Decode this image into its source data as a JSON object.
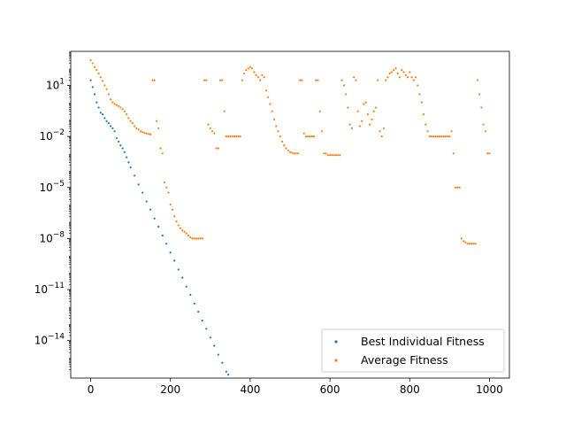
{
  "chart_data": {
    "type": "scatter",
    "xlim": [
      -50,
      1050
    ],
    "ylim_log10": [
      -16.2,
      3.0
    ],
    "y_scale": "log",
    "grid": false,
    "legend_position": "bottom-right",
    "x_ticks": [
      {
        "value": 0,
        "label": "0"
      },
      {
        "value": 200,
        "label": "200"
      },
      {
        "value": 400,
        "label": "400"
      },
      {
        "value": 600,
        "label": "600"
      },
      {
        "value": 800,
        "label": "800"
      },
      {
        "value": 1000,
        "label": "1000"
      }
    ],
    "y_ticks": [
      {
        "log10": 1,
        "base": "10",
        "exp": "1"
      },
      {
        "log10": -2,
        "base": "10",
        "exp": "−2"
      },
      {
        "log10": -5,
        "base": "10",
        "exp": "−5"
      },
      {
        "log10": -8,
        "base": "10",
        "exp": "−8"
      },
      {
        "log10": -11,
        "base": "10",
        "exp": "−11"
      },
      {
        "log10": -14,
        "base": "10",
        "exp": "−14"
      }
    ],
    "series": [
      {
        "name": "Best Individual Fitness",
        "color": "#1f77b4",
        "marker": "point",
        "points": [
          [
            0,
            20
          ],
          [
            5,
            8
          ],
          [
            10,
            3
          ],
          [
            15,
            1
          ],
          [
            20,
            0.5
          ],
          [
            25,
            0.25
          ],
          [
            30,
            0.2
          ],
          [
            35,
            0.12
          ],
          [
            40,
            0.08
          ],
          [
            45,
            0.06
          ],
          [
            50,
            0.04
          ],
          [
            55,
            0.03
          ],
          [
            60,
            0.02
          ],
          [
            65,
            0.008
          ],
          [
            70,
            0.005
          ],
          [
            75,
            0.003
          ],
          [
            80,
            0.002
          ],
          [
            85,
            0.0012
          ],
          [
            90,
            0.0006
          ],
          [
            95,
            0.0003
          ],
          [
            100,
            0.00015
          ],
          [
            110,
            5e-05
          ],
          [
            120,
            1.5e-05
          ],
          [
            130,
            5e-06
          ],
          [
            140,
            1.5e-06
          ],
          [
            150,
            5e-07
          ],
          [
            160,
            1.5e-07
          ],
          [
            170,
            5e-08
          ],
          [
            180,
            1.5e-08
          ],
          [
            190,
            5e-09
          ],
          [
            200,
            1.5e-09
          ],
          [
            210,
            5e-10
          ],
          [
            220,
            1.5e-10
          ],
          [
            230,
            5e-11
          ],
          [
            240,
            1.5e-11
          ],
          [
            250,
            5e-12
          ],
          [
            260,
            1.5e-12
          ],
          [
            270,
            5e-13
          ],
          [
            280,
            1.5e-13
          ],
          [
            290,
            5e-14
          ],
          [
            300,
            1.5e-14
          ],
          [
            310,
            5e-15
          ],
          [
            320,
            1.5e-15
          ],
          [
            330,
            5e-16
          ],
          [
            340,
            1.5e-16
          ],
          [
            345,
            1e-16
          ]
        ]
      },
      {
        "name": "Average Fitness",
        "color": "#ff7f0e",
        "marker": "point",
        "points": [
          [
            0,
            300
          ],
          [
            5,
            200
          ],
          [
            10,
            120
          ],
          [
            15,
            80
          ],
          [
            20,
            50
          ],
          [
            25,
            30
          ],
          [
            30,
            18
          ],
          [
            35,
            10
          ],
          [
            40,
            6
          ],
          [
            45,
            3
          ],
          [
            50,
            1.5
          ],
          [
            55,
            1.0
          ],
          [
            60,
            0.8
          ],
          [
            65,
            0.7
          ],
          [
            70,
            0.6
          ],
          [
            75,
            0.5
          ],
          [
            80,
            0.4
          ],
          [
            85,
            0.3
          ],
          [
            90,
            0.2
          ],
          [
            95,
            0.12
          ],
          [
            100,
            0.08
          ],
          [
            105,
            0.06
          ],
          [
            110,
            0.04
          ],
          [
            115,
            0.03
          ],
          [
            120,
            0.025
          ],
          [
            125,
            0.02
          ],
          [
            130,
            0.018
          ],
          [
            135,
            0.016
          ],
          [
            140,
            0.015
          ],
          [
            145,
            0.014
          ],
          [
            150,
            0.013
          ],
          [
            155,
            20
          ],
          [
            160,
            20
          ],
          [
            165,
            0.08
          ],
          [
            170,
            0.03
          ],
          [
            175,
            0.002
          ],
          [
            180,
            0.001
          ],
          [
            185,
            2e-05
          ],
          [
            190,
            1e-05
          ],
          [
            195,
            5e-06
          ],
          [
            200,
            1e-06
          ],
          [
            205,
            5e-07
          ],
          [
            210,
            2e-07
          ],
          [
            215,
            1e-07
          ],
          [
            220,
            6e-08
          ],
          [
            225,
            4e-08
          ],
          [
            230,
            3e-08
          ],
          [
            235,
            2.5e-08
          ],
          [
            240,
            2e-08
          ],
          [
            245,
            1.5e-08
          ],
          [
            250,
            1.2e-08
          ],
          [
            255,
            1e-08
          ],
          [
            260,
            1e-08
          ],
          [
            265,
            1e-08
          ],
          [
            270,
            1e-08
          ],
          [
            275,
            1e-08
          ],
          [
            280,
            1e-08
          ],
          [
            285,
            20
          ],
          [
            290,
            20
          ],
          [
            295,
            0.05
          ],
          [
            300,
            0.03
          ],
          [
            305,
            0.02
          ],
          [
            310,
            0.015
          ],
          [
            315,
            0.002
          ],
          [
            320,
            0.002
          ],
          [
            325,
            20
          ],
          [
            330,
            20
          ],
          [
            335,
            0.3
          ],
          [
            340,
            0.01
          ],
          [
            345,
            0.01
          ],
          [
            350,
            0.01
          ],
          [
            355,
            0.01
          ],
          [
            360,
            0.01
          ],
          [
            365,
            0.01
          ],
          [
            370,
            0.01
          ],
          [
            375,
            0.01
          ],
          [
            380,
            20
          ],
          [
            385,
            50
          ],
          [
            390,
            80
          ],
          [
            395,
            100
          ],
          [
            400,
            120
          ],
          [
            405,
            100
          ],
          [
            410,
            60
          ],
          [
            415,
            40
          ],
          [
            420,
            30
          ],
          [
            425,
            20
          ],
          [
            430,
            40
          ],
          [
            435,
            30
          ],
          [
            440,
            5
          ],
          [
            445,
            2
          ],
          [
            450,
            0.8
          ],
          [
            455,
            0.3
          ],
          [
            460,
            0.1
          ],
          [
            465,
            0.04
          ],
          [
            470,
            0.02
          ],
          [
            475,
            0.01
          ],
          [
            480,
            0.005
          ],
          [
            485,
            0.003
          ],
          [
            490,
            0.002
          ],
          [
            495,
            0.0015
          ],
          [
            500,
            0.0012
          ],
          [
            505,
            0.0011
          ],
          [
            510,
            0.001
          ],
          [
            515,
            0.001
          ],
          [
            520,
            0.001
          ],
          [
            525,
            20
          ],
          [
            530,
            20
          ],
          [
            535,
            0.015
          ],
          [
            540,
            0.01
          ],
          [
            545,
            0.01
          ],
          [
            550,
            0.01
          ],
          [
            555,
            0.01
          ],
          [
            560,
            0.01
          ],
          [
            565,
            20
          ],
          [
            570,
            20
          ],
          [
            575,
            0.3
          ],
          [
            580,
            0.02
          ],
          [
            585,
            0.001
          ],
          [
            590,
            0.001
          ],
          [
            595,
            0.0008
          ],
          [
            600,
            0.0008
          ],
          [
            605,
            0.0008
          ],
          [
            610,
            0.0008
          ],
          [
            615,
            0.0008
          ],
          [
            620,
            0.0008
          ],
          [
            625,
            0.0008
          ],
          [
            630,
            20
          ],
          [
            635,
            10
          ],
          [
            640,
            3
          ],
          [
            645,
            0.5
          ],
          [
            650,
            0.05
          ],
          [
            655,
            0.03
          ],
          [
            660,
            30
          ],
          [
            665,
            20
          ],
          [
            670,
            0.3
          ],
          [
            675,
            0.04
          ],
          [
            680,
            0.08
          ],
          [
            685,
            0.8
          ],
          [
            690,
            1
          ],
          [
            695,
            0.2
          ],
          [
            700,
            0.05
          ],
          [
            705,
            0.1
          ],
          [
            710,
            0.3
          ],
          [
            715,
            0.5
          ],
          [
            720,
            20
          ],
          [
            725,
            0.02
          ],
          [
            730,
            0.01
          ],
          [
            735,
            0.03
          ],
          [
            740,
            20
          ],
          [
            745,
            30
          ],
          [
            750,
            50
          ],
          [
            755,
            60
          ],
          [
            760,
            80
          ],
          [
            765,
            100
          ],
          [
            770,
            50
          ],
          [
            775,
            30
          ],
          [
            780,
            80
          ],
          [
            785,
            60
          ],
          [
            790,
            40
          ],
          [
            795,
            30
          ],
          [
            800,
            60
          ],
          [
            805,
            30
          ],
          [
            810,
            20
          ],
          [
            815,
            30
          ],
          [
            820,
            10
          ],
          [
            825,
            3
          ],
          [
            830,
            1
          ],
          [
            835,
            0.2
          ],
          [
            840,
            0.05
          ],
          [
            845,
            0.02
          ],
          [
            850,
            0.01
          ],
          [
            855,
            0.01
          ],
          [
            860,
            0.01
          ],
          [
            865,
            0.01
          ],
          [
            870,
            0.01
          ],
          [
            875,
            0.01
          ],
          [
            880,
            0.01
          ],
          [
            885,
            0.01
          ],
          [
            890,
            0.01
          ],
          [
            895,
            0.01
          ],
          [
            900,
            0.01
          ],
          [
            905,
            0.02
          ],
          [
            910,
            0.001
          ],
          [
            915,
            1e-05
          ],
          [
            920,
            1e-05
          ],
          [
            925,
            1e-05
          ],
          [
            930,
            1e-08
          ],
          [
            935,
            7e-09
          ],
          [
            940,
            6e-09
          ],
          [
            945,
            5e-09
          ],
          [
            950,
            5e-09
          ],
          [
            955,
            5e-09
          ],
          [
            960,
            5e-09
          ],
          [
            965,
            5e-09
          ],
          [
            970,
            20
          ],
          [
            975,
            3
          ],
          [
            980,
            0.5
          ],
          [
            985,
            0.05
          ],
          [
            990,
            0.02
          ],
          [
            995,
            0.001
          ],
          [
            1000,
            0.001
          ]
        ]
      }
    ]
  }
}
